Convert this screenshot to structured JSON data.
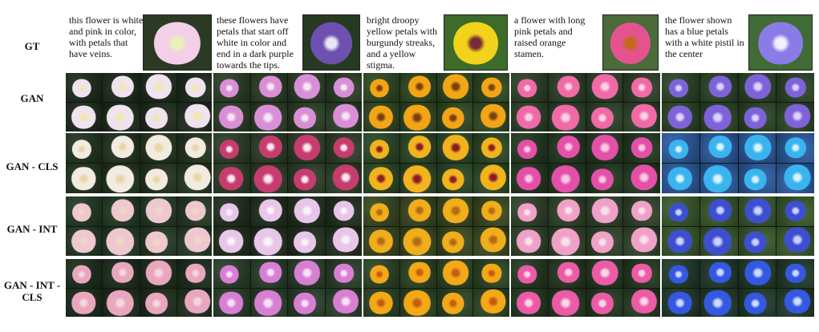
{
  "rows": [
    {
      "label": "GT"
    },
    {
      "label": "GAN"
    },
    {
      "label": "GAN - CLS"
    },
    {
      "label": "GAN - INT"
    },
    {
      "label": "GAN - INT - CLS"
    }
  ],
  "columns": [
    {
      "caption": "this flower is white and pink in color, with petals that have veins.",
      "gt_colors": {
        "petal": "#f3d0e8",
        "center": "#e9f0b8",
        "bg": "#2b3a24"
      },
      "palettes": [
        {
          "petal": "#efe3ef",
          "center": "#f2e7b0",
          "bg": "#1e2b1c"
        },
        {
          "petal": "#f2ebe2",
          "center": "#e8d8a8",
          "bg": "#22351f"
        },
        {
          "petal": "#eec7cf",
          "center": "#f0d5c4",
          "bg": "#233a24"
        },
        {
          "petal": "#e9a7bf",
          "center": "#f2d8dd",
          "bg": "#1b2d1a"
        }
      ]
    },
    {
      "caption": "these flowers have petals that start off white in color and end in a dark purple towards the tips.",
      "gt_colors": {
        "petal": "#6f4fb0",
        "center": "#e8e6f4",
        "bg": "#263a22"
      },
      "palettes": [
        {
          "petal": "#d98fd6",
          "center": "#f5e6f3",
          "bg": "#2a3f24"
        },
        {
          "petal": "#c73c6e",
          "center": "#fae7ee",
          "bg": "#2c3f27"
        },
        {
          "petal": "#e7c6ea",
          "center": "#f9f3f9",
          "bg": "#1f2e1c"
        },
        {
          "petal": "#d77fd3",
          "center": "#f7e2f5",
          "bg": "#29402a"
        }
      ]
    },
    {
      "caption": "bright droopy yellow petals with burgundy streaks, and a yellow stigma.",
      "gt_colors": {
        "petal": "#f2d21a",
        "center": "#7a2b3a",
        "bg": "#3c6b2a"
      },
      "palettes": [
        {
          "petal": "#f4a516",
          "center": "#7a4010",
          "bg": "#2e4a22"
        },
        {
          "petal": "#f2b31e",
          "center": "#8b1c24",
          "bg": "#2a4a26"
        },
        {
          "petal": "#f0ad1c",
          "center": "#b46a12",
          "bg": "#3a4a20"
        },
        {
          "petal": "#f3a818",
          "center": "#c65b10",
          "bg": "#2c4624"
        }
      ]
    },
    {
      "caption": "a flower with long pink petals and raised orange stamen.",
      "gt_colors": {
        "petal": "#e5538f",
        "center": "#c36a1e",
        "bg": "#4b6b3a"
      },
      "palettes": [
        {
          "petal": "#f06aa7",
          "center": "#f7d2e5",
          "bg": "#2b4227"
        },
        {
          "petal": "#e44fa8",
          "center": "#f8c8e3",
          "bg": "#21391f"
        },
        {
          "petal": "#f0a1c7",
          "center": "#f8e2ee",
          "bg": "#2f4429"
        },
        {
          "petal": "#ec5ba6",
          "center": "#f9d6e9",
          "bg": "#23391f"
        }
      ]
    },
    {
      "caption": "the flower shown has a blue petals with a white pistil in the center",
      "gt_colors": {
        "petal": "#8a7ce6",
        "center": "#f3f0ff",
        "bg": "#3f6b35"
      },
      "palettes": [
        {
          "petal": "#7e62d8",
          "center": "#dcd4ff",
          "bg": "#2a4625"
        },
        {
          "petal": "#3ab4ee",
          "center": "#d9f3ff",
          "bg": "#2c5ea8"
        },
        {
          "petal": "#3d4fcf",
          "center": "#c9d2ff",
          "bg": "#3a5c2c"
        },
        {
          "petal": "#3458e0",
          "center": "#cddbff",
          "bg": "#203b2a"
        }
      ]
    }
  ]
}
